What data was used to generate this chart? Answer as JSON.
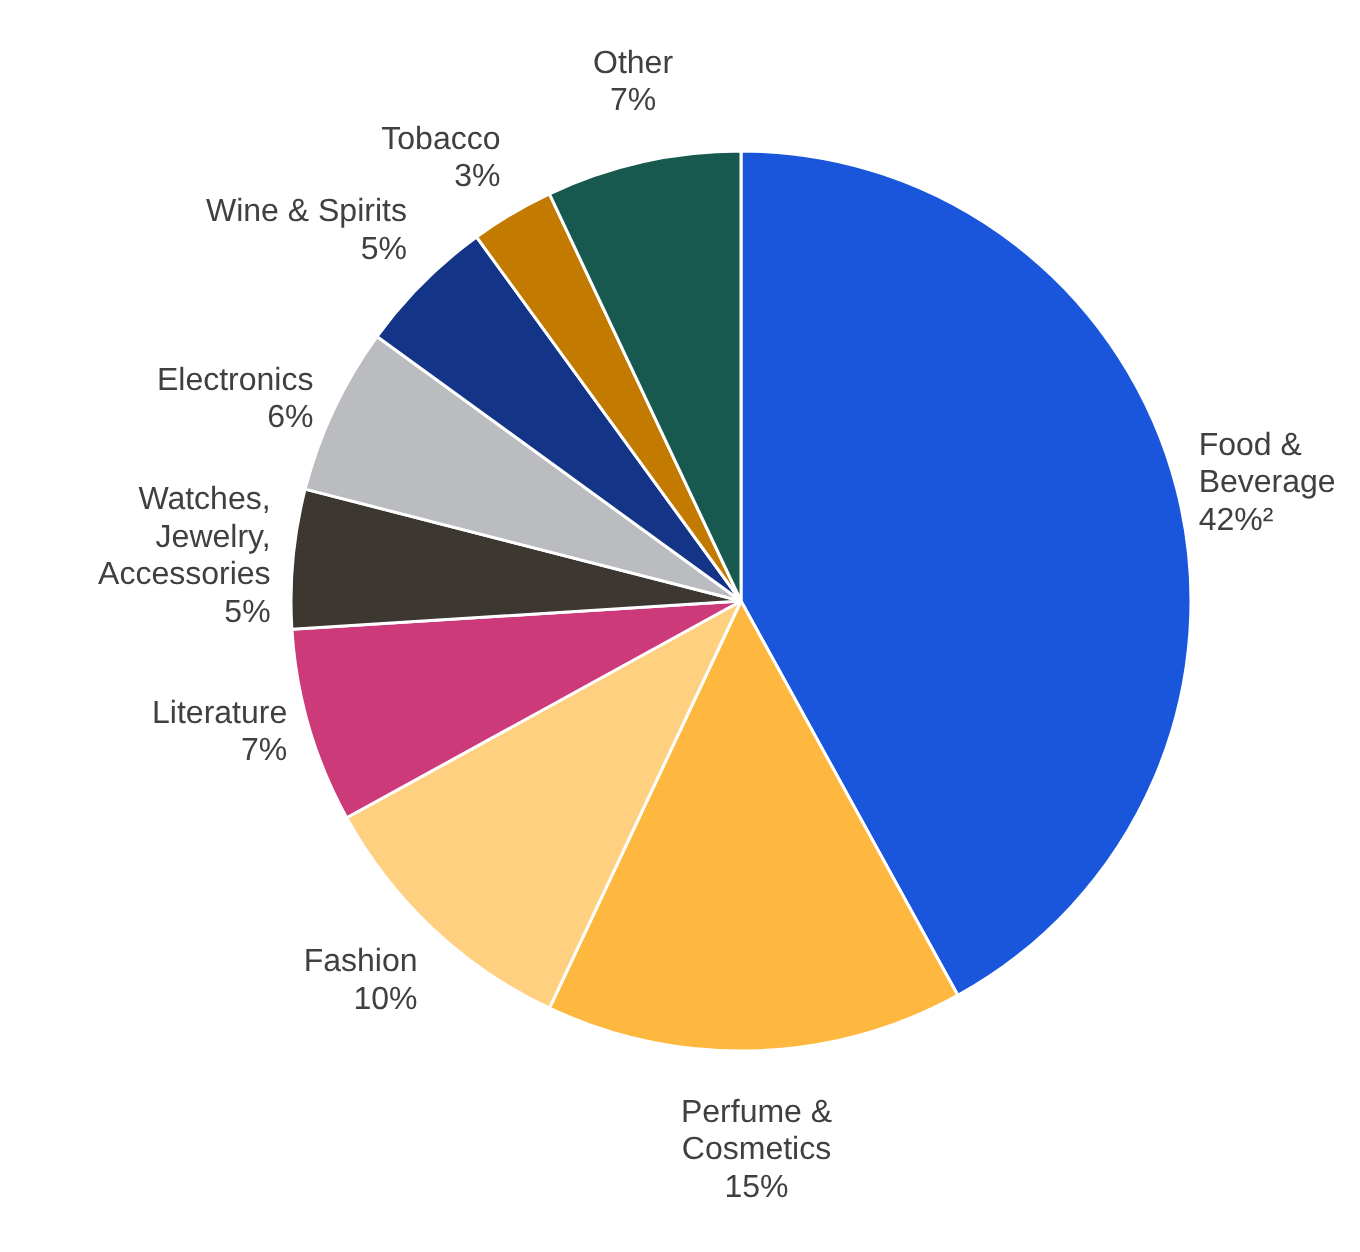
{
  "chart_data": {
    "type": "pie",
    "categories": [
      "Food &\nBeverage",
      "Perfume &\nCosmetics",
      "Fashion",
      "Literature",
      "Watches,\nJewelry,\nAccessories",
      "Electronics",
      "Wine & Spirits",
      "Tobacco",
      "Other"
    ],
    "values": [
      42,
      15,
      10,
      7,
      5,
      6,
      5,
      3,
      7
    ],
    "value_labels": [
      "42%²",
      "15%",
      "10%",
      "7%",
      "5%",
      "6%",
      "5%",
      "3%",
      "7%"
    ],
    "colors": [
      "#1a56db",
      "#ffb83f",
      "#ffd07f",
      "#cc3a7a",
      "#3d3732",
      "#babcbf",
      "#143587",
      "#c27a00",
      "#17594f"
    ]
  }
}
